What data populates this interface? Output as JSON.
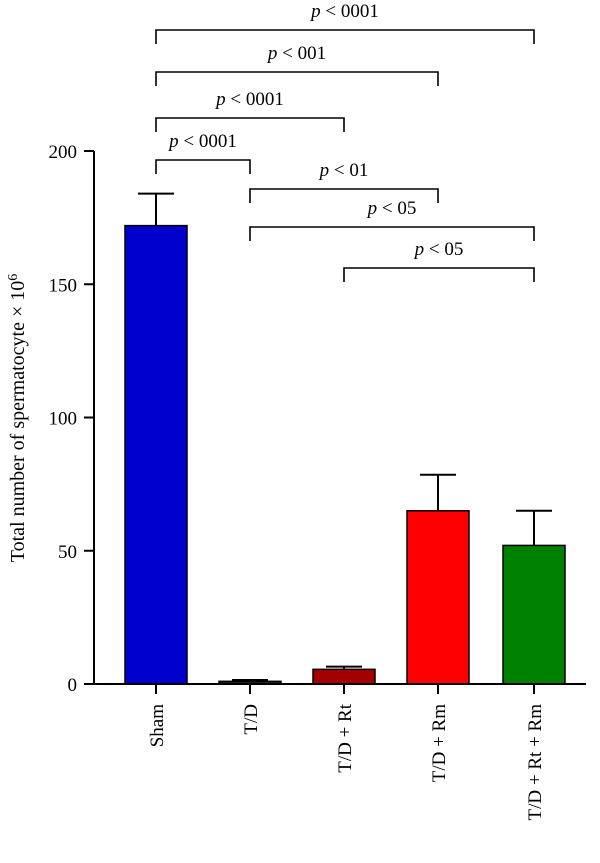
{
  "chart_data": {
    "type": "bar",
    "ylabel_main": "Total number of spermatocyte × 10",
    "ylabel_sup": "6",
    "xlabel": "",
    "ylim": [
      0,
      200
    ],
    "yticks": [
      0,
      50,
      100,
      150,
      200
    ],
    "categories": [
      "Sham",
      "T/D",
      "T/D + Rt",
      "T/D + Rm",
      "T/D + Rt + Rm"
    ],
    "values": [
      172,
      1,
      5.5,
      65,
      52
    ],
    "errors": [
      12,
      0.5,
      1,
      13.5,
      13
    ],
    "colors": [
      "#0000cc",
      "#222222",
      "#a50000",
      "#ff0000",
      "#008000"
    ],
    "significance": [
      {
        "from": 0,
        "to": 4,
        "label_p": "p",
        "label_rest": " < 0001"
      },
      {
        "from": 0,
        "to": 3,
        "label_p": "p",
        "label_rest": " < 001"
      },
      {
        "from": 0,
        "to": 2,
        "label_p": "p",
        "label_rest": " < 0001"
      },
      {
        "from": 0,
        "to": 1,
        "label_p": "p",
        "label_rest": " < 0001"
      },
      {
        "from": 1,
        "to": 3,
        "label_p": "p",
        "label_rest": " < 01"
      },
      {
        "from": 1,
        "to": 4,
        "label_p": "p",
        "label_rest": " < 05"
      },
      {
        "from": 2,
        "to": 4,
        "label_p": "p",
        "label_rest": " < 05"
      }
    ]
  }
}
